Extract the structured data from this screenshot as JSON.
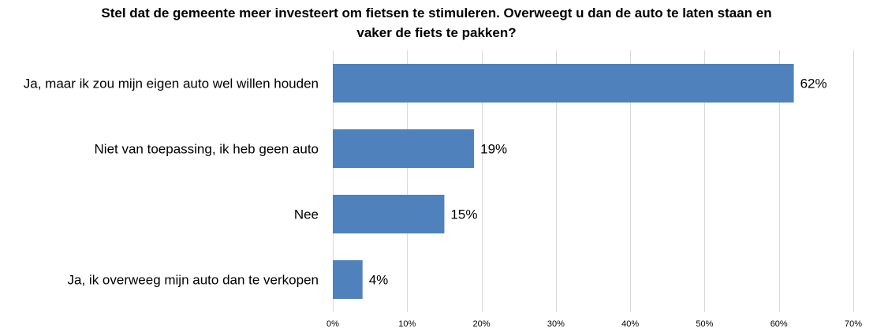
{
  "chart_data": {
    "type": "bar",
    "orientation": "horizontal",
    "title_lines": [
      "Stel dat de gemeente meer investeert om fietsen te stimuleren. Overweegt u dan de auto te laten staan en",
      "vaker de fiets te pakken?"
    ],
    "categories": [
      "Ja, maar ik zou mijn eigen auto wel willen houden",
      "Niet van toepassing, ik heb geen auto",
      "Nee",
      "Ja, ik overweeg mijn auto dan te verkopen"
    ],
    "values": [
      62,
      19,
      15,
      4
    ],
    "data_labels": [
      "62%",
      "19%",
      "15%",
      "4%"
    ],
    "xlim": [
      0,
      70
    ],
    "x_ticks": [
      0,
      10,
      20,
      30,
      40,
      50,
      60,
      70
    ],
    "x_tick_labels": [
      "0%",
      "10%",
      "20%",
      "30%",
      "40%",
      "50%",
      "60%",
      "70%"
    ],
    "grid": true,
    "legend": "none",
    "bar_color": "#4f81bd",
    "grid_color": "#d9d9d9"
  }
}
